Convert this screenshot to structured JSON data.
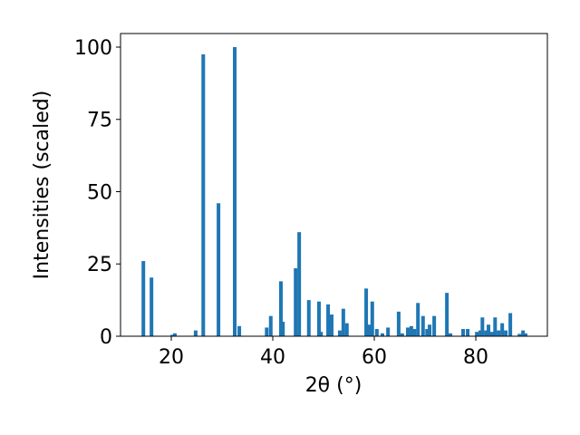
{
  "chart_data": {
    "type": "bar",
    "x_label": "2θ (°)",
    "y_label": "Intensities (scaled)",
    "color": "#1f77b4",
    "x": [
      14.5,
      16.1,
      20.2,
      20.7,
      24.8,
      26.3,
      29.3,
      32.5,
      33.4,
      38.8,
      39.6,
      41.6,
      42.0,
      44.5,
      45.2,
      47.1,
      49.1,
      49.5,
      50.9,
      51.6,
      53.2,
      53.9,
      54.6,
      58.4,
      59.1,
      59.6,
      60.5,
      61.6,
      62.7,
      64.8,
      65.5,
      66.6,
      67.3,
      67.9,
      68.6,
      69.6,
      70.4,
      70.9,
      71.8,
      74.3,
      75.0,
      77.5,
      78.4,
      80.2,
      80.9,
      81.3,
      82.0,
      82.5,
      83.2,
      83.8,
      84.5,
      85.2,
      85.9,
      86.8,
      88.6,
      89.3,
      89.8
    ],
    "values": [
      26,
      20.3,
      0.5,
      1,
      2,
      97.5,
      46,
      100,
      3.5,
      3,
      7,
      19,
      5,
      23.5,
      36,
      12.5,
      12,
      1.5,
      11,
      7.5,
      2,
      9.5,
      4.5,
      16.5,
      4,
      12,
      2.5,
      1,
      3,
      8.5,
      1,
      3,
      3.5,
      2.5,
      11.5,
      7,
      2.5,
      4,
      7,
      15,
      1,
      2.5,
      2.5,
      1.5,
      2,
      6.5,
      2,
      4,
      1.5,
      6.5,
      2,
      4.5,
      2,
      8,
      0.8,
      2,
      1
    ],
    "xlim": [
      10,
      94.1
    ],
    "ylim": [
      0,
      104.7
    ],
    "xticks": [
      20,
      40,
      60,
      80
    ],
    "yticks": [
      0,
      25,
      50,
      75,
      100
    ]
  }
}
